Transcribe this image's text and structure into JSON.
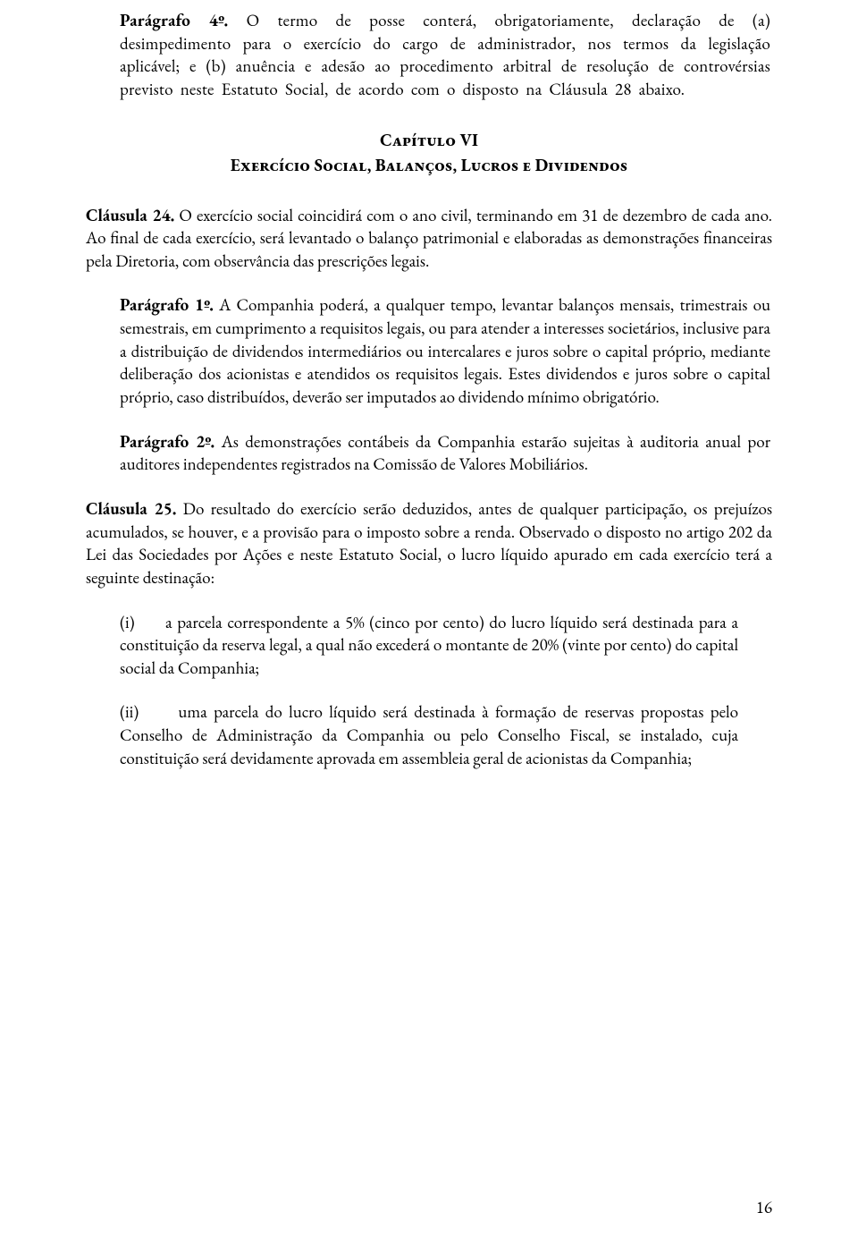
{
  "p4": {
    "label": "Parágrafo 4º.",
    "text": " O termo de posse conterá, obrigatoriamente, declaração de (a) desimpedimento para o exercício do cargo de administrador, nos termos da legislação aplicável; e (b) anuência e adesão ao procedimento arbitral de resolução de controvérsias previsto neste Estatuto Social, de acordo com o disposto na Cláusula 28 abaixo."
  },
  "chapter": {
    "line1": "Capítulo VI",
    "line2": "Exercício Social, Balanços, Lucros e Dividendos"
  },
  "c24": {
    "label": "Cláusula 24.",
    "text": " O exercício social coincidirá com o ano civil, terminando em 31 de dezembro de cada ano. Ao final de cada exercício, será levantado o balanço patrimonial e elaboradas as demonstrações financeiras pela Diretoria, com observância das prescrições legais."
  },
  "c24_p1": {
    "label": "Parágrafo 1º.",
    "text": " A Companhia poderá, a qualquer tempo, levantar balanços mensais, trimestrais ou semestrais, em cumprimento a requisitos legais, ou para atender a interesses societários, inclusive para a distribuição de dividendos intermediários ou intercalares e juros sobre o capital próprio, mediante deliberação dos acionistas e atendidos os requisitos legais. Estes dividendos e juros sobre o capital próprio, caso distribuídos, deverão ser imputados ao dividendo mínimo obrigatório."
  },
  "c24_p2": {
    "label": "Parágrafo 2º.",
    "text": " As demonstrações contábeis da Companhia estarão sujeitas à auditoria anual por auditores independentes registrados na Comissão de Valores Mobiliários."
  },
  "c25": {
    "label": "Cláusula 25.",
    "text": " Do resultado do exercício serão deduzidos, antes de qualquer participação, os prejuízos acumulados, se houver, e a provisão para o imposto sobre a renda. Observado o disposto no artigo 202 da Lei das Sociedades por Ações e neste Estatuto Social, o lucro líquido apurado em cada exercício terá a seguinte destinação:"
  },
  "item_i": {
    "marker": "(i)",
    "text": "a parcela correspondente a 5% (cinco por cento) do lucro líquido será destinada para a constituição da reserva legal, a qual não excederá o montante de 20% (vinte por cento) do capital social da Companhia;"
  },
  "item_ii": {
    "marker": "(ii)",
    "text": "uma parcela do lucro líquido será destinada à formação de reservas propostas pelo Conselho de Administração da Companhia ou pelo Conselho Fiscal, se instalado, cuja constituição será devidamente aprovada em assembleia geral de acionistas da Companhia;"
  },
  "page_number": "16"
}
